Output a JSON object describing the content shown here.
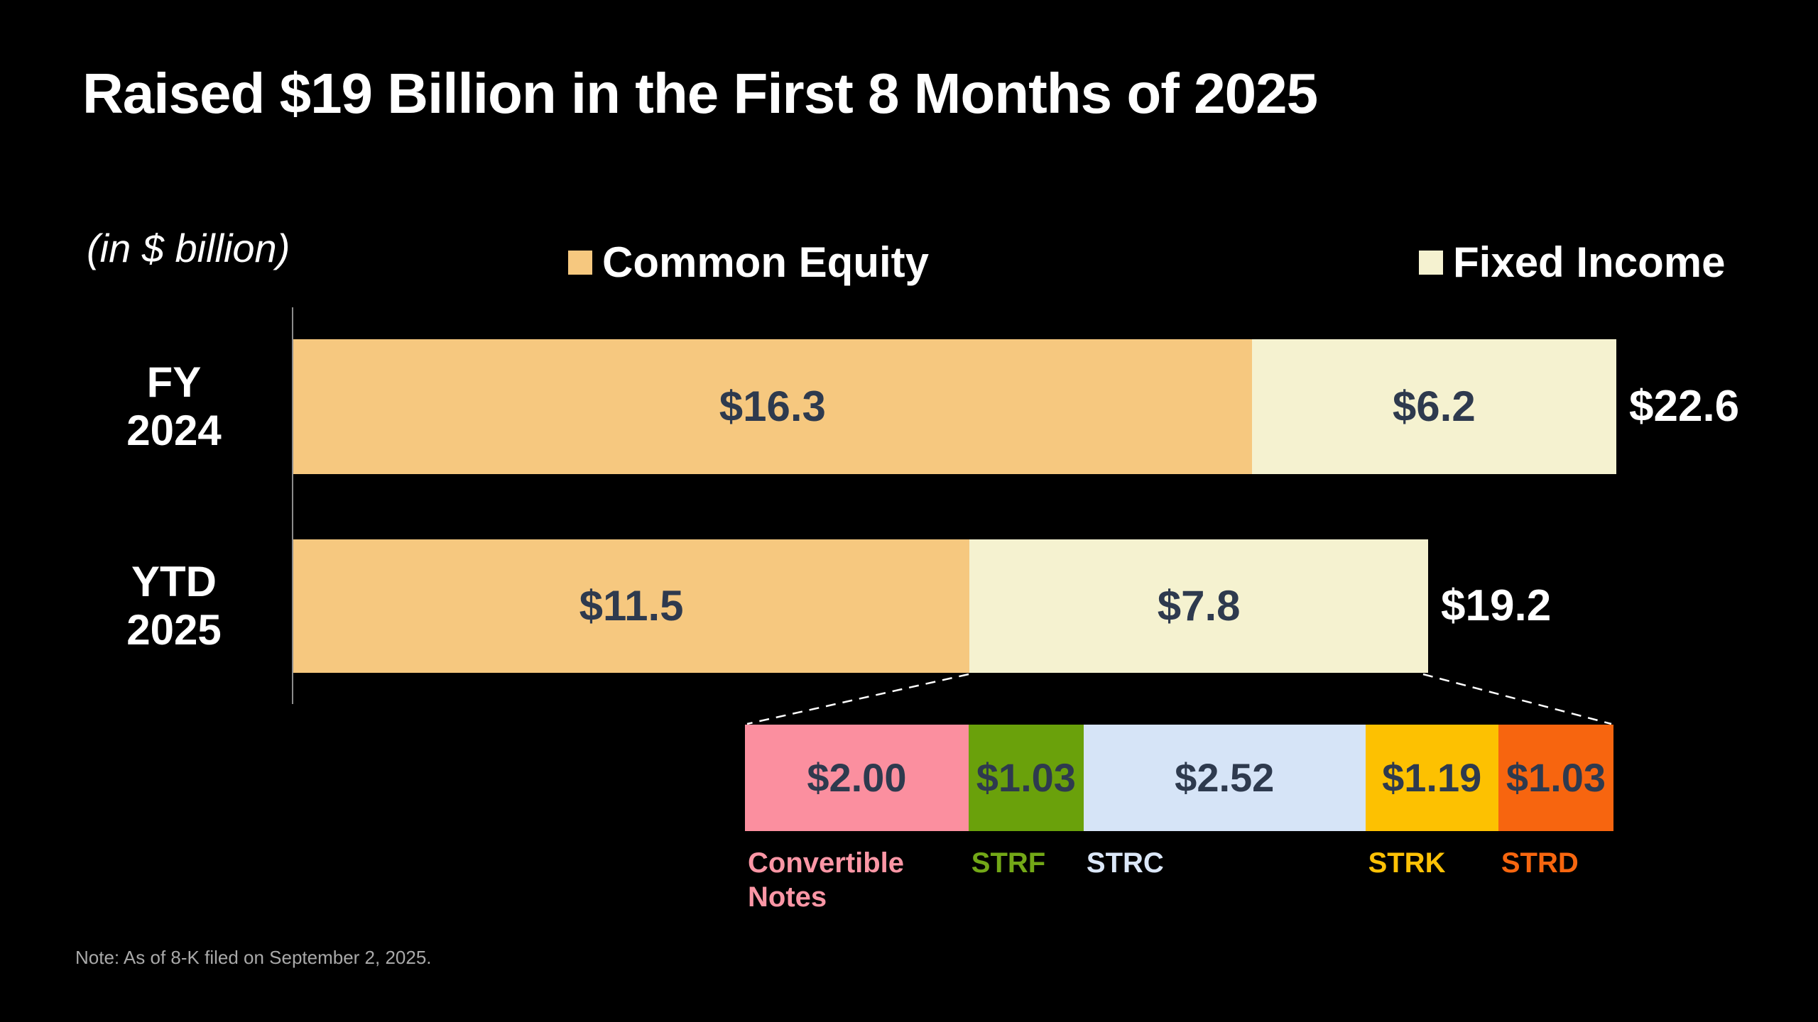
{
  "title": "Raised $19 Billion in the First 8 Months of 2025",
  "units_label": "(in $ billion)",
  "note": "Note: As of 8-K filed on September 2, 2025.",
  "colors": {
    "background": "#000000",
    "common_equity": "#f6c87f",
    "fixed_income": "#f5f2d0",
    "value_text": "#2e3a4e",
    "axis_line": "#8c8c8c",
    "note_text": "#a9a9a9",
    "connector": "#ffffff"
  },
  "legend": [
    {
      "label": "Common Equity",
      "color": "#f6c87f"
    },
    {
      "label": "Fixed Income",
      "color": "#f5f2d0"
    }
  ],
  "chart_data": {
    "type": "bar",
    "orientation": "horizontal",
    "stacked": true,
    "units": "$ billion",
    "grid": false,
    "categories": [
      {
        "lines": [
          "FY",
          "2024"
        ]
      },
      {
        "lines": [
          "YTD",
          "2025"
        ]
      }
    ],
    "series": [
      {
        "name": "Common Equity",
        "color": "#f6c87f",
        "values": [
          16.3,
          11.5
        ],
        "labels": [
          "$16.3",
          "$11.5"
        ]
      },
      {
        "name": "Fixed Income",
        "color": "#f5f2d0",
        "values": [
          6.2,
          7.8
        ],
        "labels": [
          "$6.2",
          "$7.8"
        ]
      }
    ],
    "totals": [
      {
        "value": 22.6,
        "label": "$22.6"
      },
      {
        "value": 19.2,
        "label": "$19.2"
      }
    ],
    "value_label_color": "#2e3a4e",
    "breakdown": {
      "of": "Fixed Income YTD 2025",
      "segments": [
        {
          "ticker": "Convertible Notes",
          "value": 2.0,
          "label": "$2.00",
          "color": "#fb8f9f",
          "text_color": "#fb96a5"
        },
        {
          "ticker": "STRF",
          "value": 1.03,
          "label": "$1.03",
          "color": "#6aa10b",
          "text_color": "#73a817"
        },
        {
          "ticker": "STRC",
          "value": 2.52,
          "label": "$2.52",
          "color": "#d6e4f7",
          "text_color": "#dbe7f8"
        },
        {
          "ticker": "STRK",
          "value": 1.19,
          "label": "$1.19",
          "color": "#fdc101",
          "text_color": "#fdc105"
        },
        {
          "ticker": "STRD",
          "value": 1.03,
          "label": "$1.03",
          "color": "#f7650f",
          "text_color": "#f7660f"
        }
      ]
    }
  }
}
